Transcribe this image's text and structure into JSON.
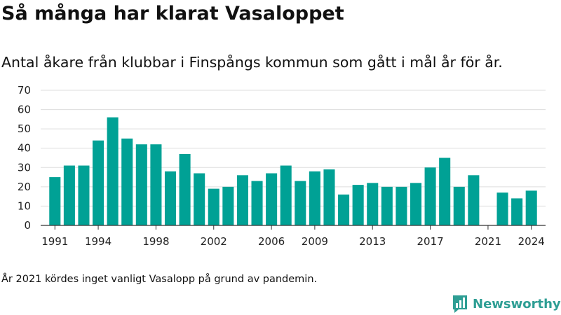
{
  "title": "Så många har klarat Vasaloppet",
  "subtitle": "Antal åkare från klubbar i Finspångs kommun som gått i mål år för år.",
  "footnote": "År 2021 kördes inget vanligt Vasalopp på grund av pandemin.",
  "brand": {
    "name": "Newsworthy",
    "icon": "bar-chart-chat-icon",
    "color": "#2e9e94"
  },
  "colors": {
    "bar": "#00a195",
    "grid": "#dddddd",
    "axis": "#333333"
  },
  "chart_data": {
    "type": "bar",
    "x": [
      1991,
      1992,
      1993,
      1994,
      1995,
      1996,
      1997,
      1998,
      1999,
      2000,
      2001,
      2002,
      2003,
      2004,
      2005,
      2006,
      2007,
      2008,
      2009,
      2010,
      2011,
      2012,
      2013,
      2014,
      2015,
      2016,
      2017,
      2018,
      2019,
      2020,
      2021,
      2022,
      2023,
      2024
    ],
    "values": [
      25,
      31,
      31,
      44,
      56,
      45,
      42,
      42,
      28,
      37,
      27,
      19,
      20,
      26,
      23,
      27,
      31,
      23,
      28,
      29,
      16,
      21,
      22,
      20,
      20,
      22,
      30,
      35,
      20,
      26,
      0,
      17,
      14,
      18
    ],
    "x_tick_labels": [
      "1991",
      "1994",
      "1998",
      "2002",
      "2006",
      "2009",
      "2013",
      "2017",
      "2021",
      "2024"
    ],
    "y_ticks": [
      0,
      10,
      20,
      30,
      40,
      50,
      60,
      70
    ],
    "ylim": [
      0,
      70
    ],
    "xlabel": "",
    "ylabel": "",
    "grid": true,
    "legend": "none"
  }
}
